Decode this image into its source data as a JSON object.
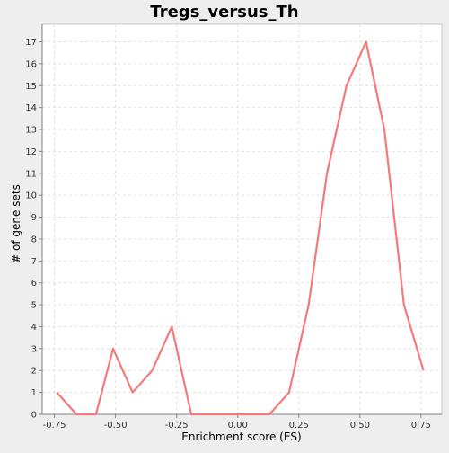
{
  "chart_data": {
    "type": "line",
    "title": "Tregs_versus_Th",
    "xlabel": "Enrichment score (ES)",
    "ylabel": "# of gene sets",
    "xlim": [
      -0.8,
      0.835
    ],
    "ylim": [
      0,
      17.8
    ],
    "x_ticks": [
      -0.75,
      -0.5,
      -0.25,
      0.0,
      0.25,
      0.5,
      0.75
    ],
    "x_tick_labels": [
      "-0.75",
      "-0.50",
      "-0.25",
      "0.00",
      "0.25",
      "0.50",
      "0.75"
    ],
    "y_ticks": [
      0,
      1,
      2,
      3,
      4,
      5,
      6,
      7,
      8,
      9,
      10,
      11,
      12,
      13,
      14,
      15,
      16,
      17
    ],
    "y_tick_labels": [
      "0",
      "1",
      "2",
      "3",
      "4",
      "5",
      "6",
      "7",
      "8",
      "9",
      "10",
      "11",
      "12",
      "13",
      "14",
      "15",
      "16",
      "17"
    ],
    "grid": true,
    "legend": false,
    "series": [
      {
        "color": "#f47a7a",
        "x": [
          -0.74,
          -0.66,
          -0.58,
          -0.51,
          -0.43,
          -0.35,
          -0.27,
          -0.19,
          -0.11,
          -0.03,
          0.05,
          0.13,
          0.21,
          0.29,
          0.365,
          0.445,
          0.525,
          0.6,
          0.68,
          0.76
        ],
        "y": [
          1,
          0,
          0,
          3,
          1,
          2,
          4,
          0,
          0,
          0,
          0,
          0,
          1,
          5,
          11,
          15,
          17,
          13,
          5,
          2
        ]
      }
    ]
  }
}
